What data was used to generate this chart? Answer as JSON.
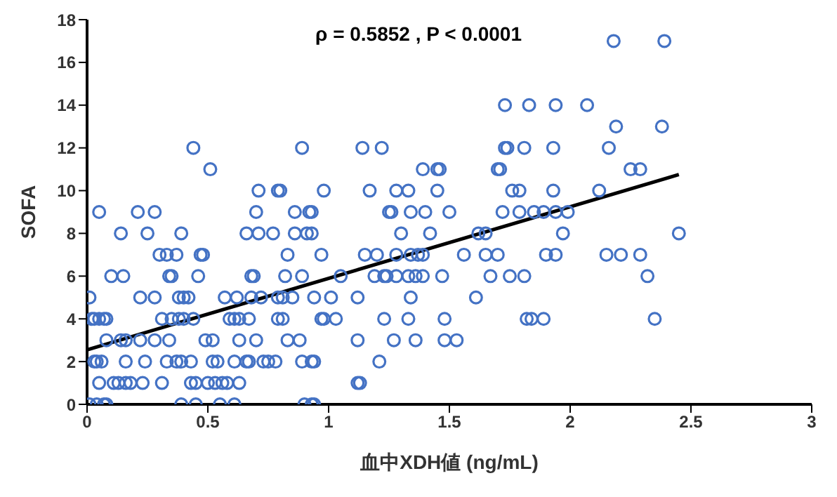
{
  "chart_data": {
    "type": "scatter",
    "xlabel": "血中XDH値 (ng/mL)",
    "ylabel": "SOFA",
    "annotations": [
      "ρ = 0.5852 , P < 0.0001"
    ],
    "xlim": [
      0,
      3
    ],
    "xticks": [
      0,
      0.5,
      1,
      1.5,
      2,
      2.5,
      3
    ],
    "ylim": [
      0,
      18
    ],
    "yticks": [
      0,
      2,
      4,
      6,
      8,
      10,
      12,
      14,
      16,
      18
    ],
    "series": [
      {
        "marker": "circle",
        "color": "#4472c4",
        "x": [
          0.01,
          0.04,
          0.07,
          0.08,
          0.39,
          0.45,
          0.55,
          0.61,
          0.9,
          0.93,
          0.94,
          0.05,
          0.11,
          0.13,
          0.16,
          0.18,
          0.23,
          0.31,
          0.43,
          0.45,
          0.5,
          0.53,
          0.56,
          0.58,
          0.63,
          1.12,
          1.13,
          0.03,
          0.04,
          0.06,
          0.16,
          0.24,
          0.33,
          0.37,
          0.39,
          0.43,
          0.52,
          0.54,
          0.61,
          0.66,
          0.67,
          0.73,
          0.75,
          0.78,
          0.89,
          0.93,
          0.94,
          1.21,
          0.08,
          0.14,
          0.16,
          0.22,
          0.28,
          0.34,
          0.49,
          0.52,
          0.63,
          0.7,
          0.83,
          0.88,
          1.12,
          1.27,
          1.36,
          1.48,
          1.53,
          0.02,
          0.03,
          0.05,
          0.07,
          0.08,
          0.31,
          0.35,
          0.38,
          0.4,
          0.44,
          0.59,
          0.61,
          0.63,
          0.67,
          0.79,
          0.81,
          0.97,
          0.98,
          1.03,
          1.23,
          1.33,
          1.48,
          1.82,
          1.84,
          1.89,
          2.35,
          0.01,
          0.22,
          0.28,
          0.38,
          0.4,
          0.42,
          0.57,
          0.62,
          0.68,
          0.72,
          0.79,
          0.81,
          0.85,
          0.94,
          1.01,
          1.12,
          1.34,
          1.61,
          0.1,
          0.15,
          0.34,
          0.35,
          0.46,
          0.68,
          0.69,
          0.82,
          0.89,
          1.05,
          1.19,
          1.23,
          1.24,
          1.28,
          1.33,
          1.36,
          1.39,
          1.47,
          1.67,
          1.75,
          1.81,
          2.32,
          0.3,
          0.33,
          0.37,
          0.47,
          0.48,
          0.83,
          0.97,
          1.15,
          1.2,
          1.28,
          1.34,
          1.37,
          1.39,
          1.56,
          1.65,
          1.7,
          1.9,
          1.94,
          2.15,
          2.21,
          2.29,
          0.14,
          0.25,
          0.39,
          0.66,
          0.71,
          0.77,
          0.86,
          0.91,
          0.93,
          1.3,
          1.42,
          1.62,
          1.65,
          1.97,
          2.45,
          0.05,
          0.21,
          0.28,
          0.7,
          0.86,
          0.92,
          0.93,
          1.25,
          1.26,
          1.34,
          1.4,
          1.5,
          1.72,
          1.79,
          1.85,
          1.89,
          1.94,
          1.99,
          0.71,
          0.79,
          0.8,
          0.98,
          1.17,
          1.28,
          1.33,
          1.45,
          1.76,
          1.79,
          1.93,
          2.12,
          0.51,
          1.39,
          1.45,
          1.46,
          1.7,
          1.71,
          2.25,
          2.29,
          0.44,
          0.89,
          1.14,
          1.22,
          1.73,
          1.74,
          1.81,
          1.93,
          2.16,
          2.19,
          2.38,
          1.73,
          1.83,
          1.94,
          2.07,
          2.18,
          2.39
        ],
        "values": [
          0,
          0,
          0,
          0,
          0,
          0,
          0,
          0,
          0,
          0,
          0,
          1,
          1,
          1,
          1,
          1,
          1,
          1,
          1,
          1,
          1,
          1,
          1,
          1,
          1,
          1,
          1,
          2,
          2,
          2,
          2,
          2,
          2,
          2,
          2,
          2,
          2,
          2,
          2,
          2,
          2,
          2,
          2,
          2,
          2,
          2,
          2,
          2,
          3,
          3,
          3,
          3,
          3,
          3,
          3,
          3,
          3,
          3,
          3,
          3,
          3,
          3,
          3,
          3,
          3,
          4,
          4,
          4,
          4,
          4,
          4,
          4,
          4,
          4,
          4,
          4,
          4,
          4,
          4,
          4,
          4,
          4,
          4,
          4,
          4,
          4,
          4,
          4,
          4,
          4,
          4,
          5,
          5,
          5,
          5,
          5,
          5,
          5,
          5,
          5,
          5,
          5,
          5,
          5,
          5,
          5,
          5,
          5,
          5,
          6,
          6,
          6,
          6,
          6,
          6,
          6,
          6,
          6,
          6,
          6,
          6,
          6,
          6,
          6,
          6,
          6,
          6,
          6,
          6,
          6,
          6,
          7,
          7,
          7,
          7,
          7,
          7,
          7,
          7,
          7,
          7,
          7,
          7,
          7,
          7,
          7,
          7,
          7,
          7,
          7,
          7,
          7,
          8,
          8,
          8,
          8,
          8,
          8,
          8,
          8,
          8,
          8,
          8,
          8,
          8,
          8,
          8,
          9,
          9,
          9,
          9,
          9,
          9,
          9,
          9,
          9,
          9,
          9,
          9,
          9,
          9,
          9,
          9,
          9,
          9,
          10,
          10,
          10,
          10,
          10,
          10,
          10,
          10,
          10,
          10,
          10,
          10,
          11,
          11,
          11,
          11,
          11,
          11,
          11,
          11,
          12,
          12,
          12,
          12,
          12,
          12,
          12,
          12,
          12,
          13,
          13,
          14,
          14,
          14,
          14,
          17,
          17
        ]
      },
      {
        "type": "line",
        "marker": "none",
        "color": "#000000",
        "x": [
          0,
          2.45
        ],
        "values": [
          2.55,
          10.75
        ]
      }
    ]
  }
}
